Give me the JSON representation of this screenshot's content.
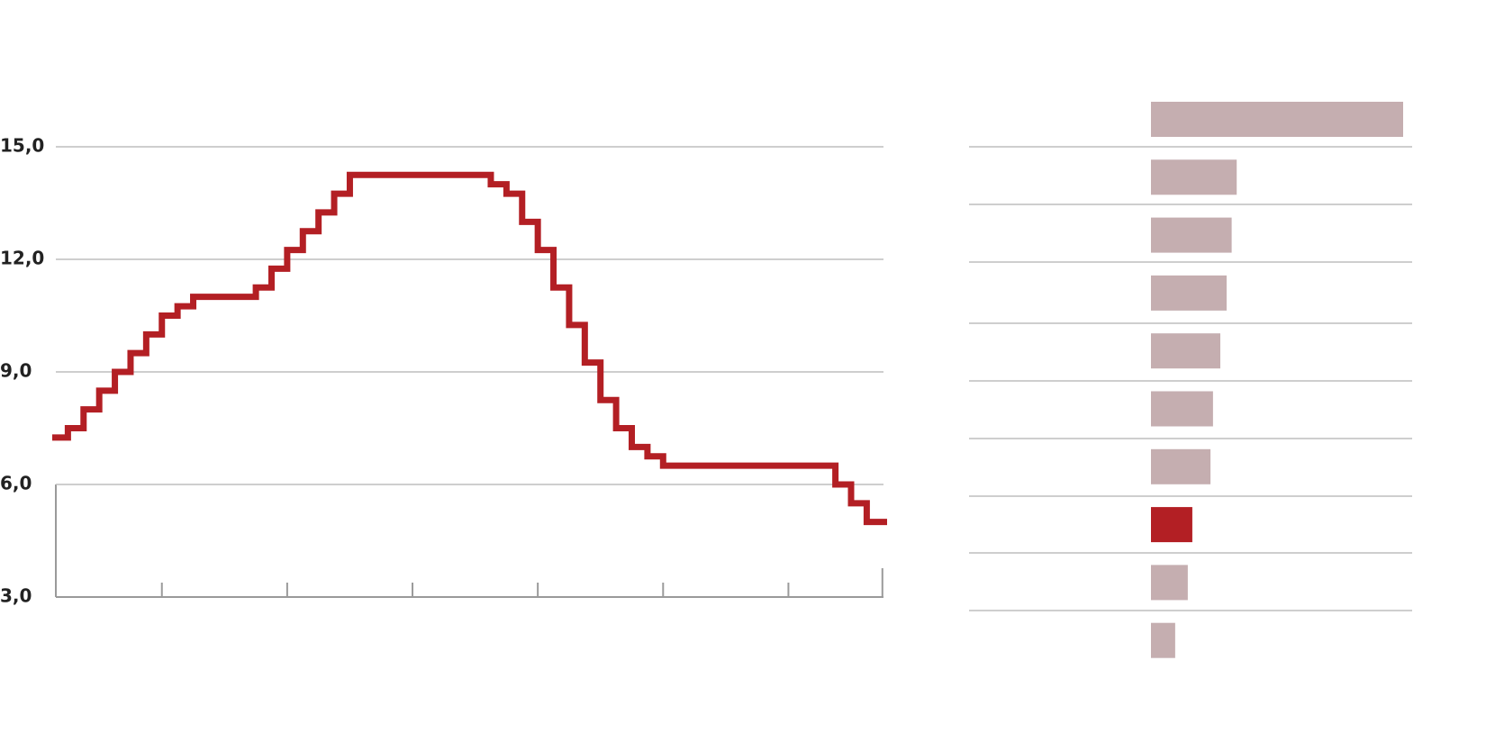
{
  "chart_data": [
    {
      "type": "step",
      "x": [
        0,
        1,
        2,
        3,
        4,
        5,
        6,
        7,
        8,
        9,
        13,
        14,
        15,
        16,
        17,
        18,
        19,
        28,
        29,
        30,
        31,
        32,
        33,
        34,
        35,
        36,
        37,
        38,
        39,
        50,
        51,
        52
      ],
      "values": [
        7.25,
        7.5,
        8.0,
        8.5,
        9.0,
        9.5,
        10.0,
        10.5,
        10.75,
        11.0,
        11.25,
        11.75,
        12.25,
        12.75,
        13.25,
        13.75,
        14.25,
        14.0,
        13.75,
        13.0,
        12.25,
        11.25,
        10.25,
        9.25,
        8.25,
        7.5,
        7.0,
        6.75,
        6.5,
        6.0,
        5.5,
        5.0
      ],
      "color": "#b31f24",
      "xlim": [
        0,
        53.3
      ],
      "xticks": [
        7,
        15,
        23,
        31,
        39,
        47,
        53
      ],
      "ylim": [
        3,
        15
      ],
      "yticks": [
        {
          "value": 3,
          "label": "3,0"
        },
        {
          "value": 6,
          "label": "6,0"
        },
        {
          "value": 9,
          "label": "9,0"
        },
        {
          "value": 12,
          "label": "12,0"
        },
        {
          "value": 15,
          "label": "15,0"
        }
      ],
      "grid": true
    },
    {
      "type": "hbar",
      "values": [
        100,
        34,
        32,
        30,
        27.5,
        24.6,
        23.6,
        16.4,
        14.6,
        9.6
      ],
      "colors": [
        "#c5aeb0",
        "#c5aeb0",
        "#c5aeb0",
        "#c5aeb0",
        "#c5aeb0",
        "#c5aeb0",
        "#c5aeb0",
        "#b31f24",
        "#c5aeb0",
        "#c5aeb0"
      ],
      "xlim": [
        0,
        100
      ]
    }
  ]
}
